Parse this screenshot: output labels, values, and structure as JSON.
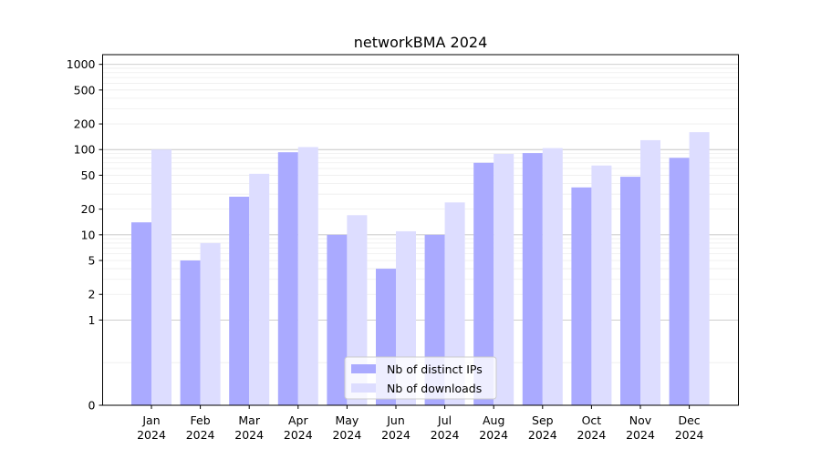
{
  "chart_data": {
    "type": "bar",
    "title": "networkBMA 2024",
    "xlabel": "",
    "ylabel": "",
    "y_scale": "symlog",
    "ylim": [
      0,
      1300
    ],
    "y_ticks": [
      0,
      1,
      2,
      5,
      10,
      20,
      50,
      100,
      200,
      500,
      1000
    ],
    "y_tick_labels": [
      "0",
      "1",
      "2",
      "5",
      "10",
      "20",
      "50",
      "100",
      "200",
      "500",
      "1000"
    ],
    "grid": true,
    "legend_position": "bottom-center",
    "categories": [
      "Jan\n2024",
      "Feb\n2024",
      "Mar\n2024",
      "Apr\n2024",
      "May\n2024",
      "Jun\n2024",
      "Jul\n2024",
      "Aug\n2024",
      "Sep\n2024",
      "Oct\n2024",
      "Nov\n2024",
      "Dec\n2024"
    ],
    "category_lines": [
      [
        "Jan",
        "2024"
      ],
      [
        "Feb",
        "2024"
      ],
      [
        "Mar",
        "2024"
      ],
      [
        "Apr",
        "2024"
      ],
      [
        "May",
        "2024"
      ],
      [
        "Jun",
        "2024"
      ],
      [
        "Jul",
        "2024"
      ],
      [
        "Aug",
        "2024"
      ],
      [
        "Sep",
        "2024"
      ],
      [
        "Oct",
        "2024"
      ],
      [
        "Nov",
        "2024"
      ],
      [
        "Dec",
        "2024"
      ]
    ],
    "series": [
      {
        "name": "Nb of distinct IPs",
        "color": "#aaaaff",
        "values": [
          14,
          5,
          28,
          93,
          10,
          4,
          10,
          70,
          91,
          36,
          48,
          80
        ]
      },
      {
        "name": "Nb of downloads",
        "color": "#ddddff",
        "values": [
          100,
          8,
          52,
          107,
          17,
          11,
          24,
          89,
          104,
          65,
          129,
          160
        ]
      }
    ]
  }
}
